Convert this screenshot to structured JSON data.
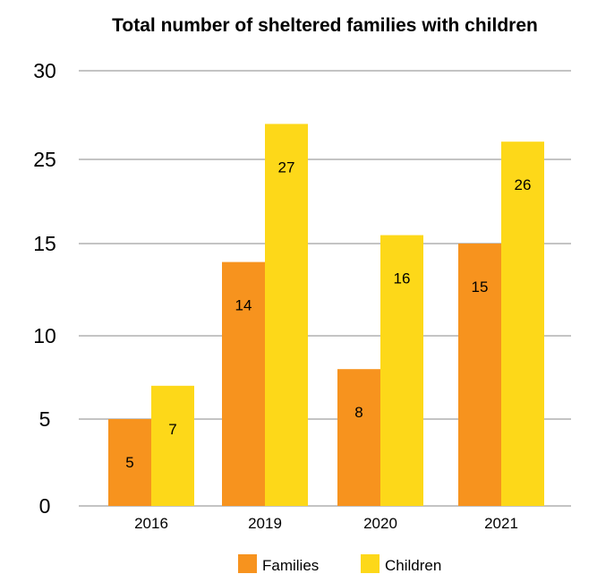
{
  "chart_data": {
    "type": "bar",
    "title": "Total number of sheltered families with children",
    "xlabel": "",
    "ylabel": "",
    "categories": [
      "2016",
      "2019",
      "2020",
      "2021"
    ],
    "y_ticks": [
      "0",
      "5",
      "10",
      "15",
      "25",
      "30"
    ],
    "series": [
      {
        "name": "Families",
        "values": [
          5,
          14,
          8,
          15
        ],
        "labels": [
          "5",
          "14",
          "8",
          "15"
        ],
        "color": "#F7931E"
      },
      {
        "name": "Children",
        "values": [
          7,
          27,
          16,
          26
        ],
        "labels": [
          "7",
          "27",
          "16",
          "26"
        ],
        "color": "#FDD819"
      }
    ],
    "grid": true,
    "legend": "bottom-center"
  }
}
